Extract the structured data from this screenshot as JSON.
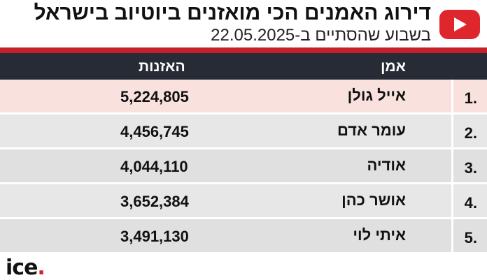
{
  "header": {
    "title": "דירוג האמנים הכי מואזנים ביוטיוב בישראל",
    "subtitle": "בשבוע שהסתיים ב-22.05.2025",
    "icon": "youtube-play-icon",
    "accent_color": "#e0262d"
  },
  "table": {
    "columns": {
      "artist": "אמן",
      "listens": "האזנות"
    },
    "rows": [
      {
        "rank": "1.",
        "artist": "אייל גולן",
        "listens": "5,224,805"
      },
      {
        "rank": "2.",
        "artist": "עומר אדם",
        "listens": "4,456,745"
      },
      {
        "rank": "3.",
        "artist": "אודיה",
        "listens": "4,044,110"
      },
      {
        "rank": "4.",
        "artist": "אושר כהן",
        "listens": "3,652,384"
      },
      {
        "rank": "5.",
        "artist": "איתי לוי",
        "listens": "3,491,130"
      }
    ]
  },
  "footer": {
    "logo_text": "ice",
    "logo_dot": "."
  }
}
